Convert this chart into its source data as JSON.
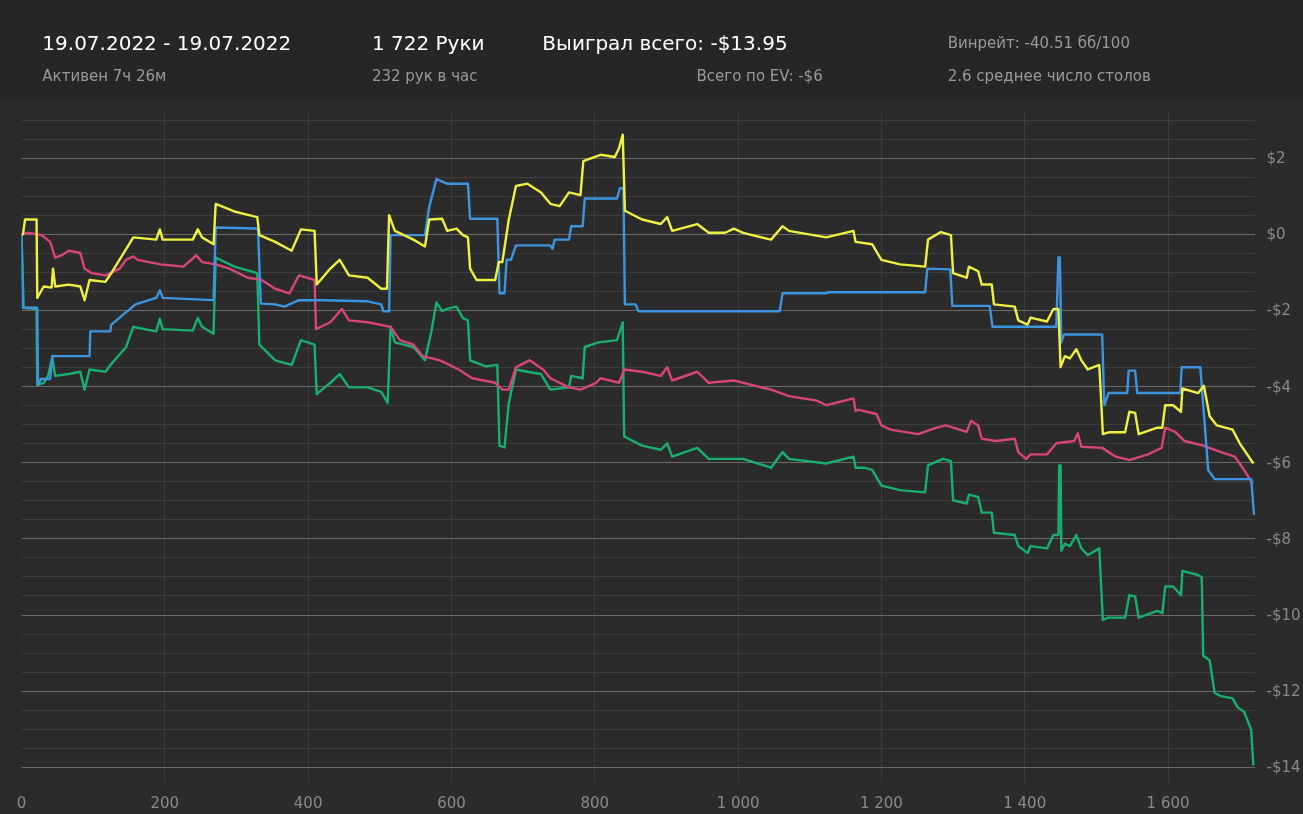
{
  "chart_data": {
    "type": "line",
    "annotations": [
      "19.07.2022 - 19.07.2022",
      "Активен 7ч 26м",
      "1 722 Руки",
      "232 рук в час",
      "Выиграл всего: -$13.95",
      "Всего по EV: -$6",
      "Винрейт: -40.51 бб/100",
      "2.6 среднее число столов"
    ],
    "xlim": [
      0,
      1722
    ],
    "ylim": [
      -14.4,
      3.2
    ],
    "xticks": [
      0,
      200,
      400,
      600,
      800,
      {
        "value": 1000,
        "label": "1 000"
      },
      {
        "value": 1200,
        "label": "1 200"
      },
      {
        "value": 1400,
        "label": "1 400"
      },
      {
        "value": 1600,
        "label": "1 600"
      }
    ],
    "yticks": [
      {
        "value": 2,
        "label": "$2"
      },
      {
        "value": 0,
        "label": "$0"
      },
      {
        "value": -2,
        "label": "-$2"
      },
      {
        "value": -4,
        "label": "-$4"
      },
      {
        "value": -6,
        "label": "-$6"
      },
      {
        "value": -8,
        "label": "-$8"
      },
      {
        "value": -10,
        "label": "-$10"
      },
      {
        "value": -12,
        "label": "-$12"
      },
      {
        "value": -14,
        "label": "-$14"
      }
    ],
    "grid": true,
    "marker": "none",
    "line_style": "solid",
    "series": [
      {
        "color": "#19b06f",
        "x": [
          0,
          3,
          21,
          22,
          31,
          37,
          43,
          47,
          66,
          82,
          88,
          95,
          117,
          127,
          146,
          156,
          188,
          193,
          197,
          239,
          246,
          252,
          268,
          271,
          297,
          329,
          332,
          354,
          377,
          390,
          409,
          412,
          431,
          444,
          457,
          483,
          502,
          511,
          515,
          521,
          547,
          563,
          572,
          579,
          587,
          594,
          607,
          616,
          623,
          626,
          648,
          664,
          667,
          674,
          680,
          690,
          706,
          725,
          738,
          764,
          767,
          783,
          786,
          805,
          831,
          839,
          841,
          866,
          892,
          901,
          908,
          943,
          959,
          994,
          1007,
          1046,
          1062,
          1071,
          1123,
          1161,
          1164,
          1176,
          1187,
          1200,
          1226,
          1261,
          1265,
          1286,
          1297,
          1300,
          1319,
          1322,
          1335,
          1340,
          1354,
          1357,
          1386,
          1391,
          1404,
          1408,
          1431,
          1440,
          1447,
          1448,
          1450,
          1451,
          1456,
          1463,
          1472,
          1479,
          1488,
          1504,
          1509,
          1517,
          1540,
          1546,
          1554,
          1559,
          1585,
          1592,
          1596,
          1607,
          1618,
          1620,
          1642,
          1647,
          1649,
          1658,
          1665,
          1674,
          1690,
          1697,
          1706,
          1716,
          1719
        ],
        "values": [
          0,
          -1.93,
          -1.96,
          -3.96,
          -3.9,
          -3.72,
          -3.25,
          -3.72,
          -3.67,
          -3.61,
          -4.08,
          -3.55,
          -3.61,
          -3.37,
          -2.96,
          -2.43,
          -2.55,
          -2.22,
          -2.49,
          -2.53,
          -2.2,
          -2.43,
          -2.61,
          -0.61,
          -0.85,
          -1.02,
          -2.9,
          -3.31,
          -3.43,
          -2.78,
          -2.9,
          -4.2,
          -3.9,
          -3.67,
          -4.02,
          -4.02,
          -4.14,
          -4.43,
          -2.43,
          -2.84,
          -2.96,
          -3.31,
          -2.55,
          -1.79,
          -2.02,
          -1.96,
          -1.9,
          -2.2,
          -2.26,
          -3.31,
          -3.47,
          -3.43,
          -5.55,
          -5.6,
          -4.43,
          -3.55,
          -3.61,
          -3.67,
          -4.08,
          -4.02,
          -3.72,
          -3.78,
          -2.96,
          -2.84,
          -2.78,
          -2.31,
          -5.31,
          -5.55,
          -5.66,
          -5.49,
          -5.84,
          -5.61,
          -5.9,
          -5.9,
          -5.9,
          -6.13,
          -5.72,
          -5.9,
          -6.02,
          -5.84,
          -6.13,
          -6.13,
          -6.19,
          -6.6,
          -6.72,
          -6.78,
          -6.07,
          -5.9,
          -5.96,
          -6.99,
          -7.07,
          -6.84,
          -6.9,
          -7.31,
          -7.31,
          -7.84,
          -7.9,
          -8.19,
          -8.37,
          -8.19,
          -8.25,
          -7.9,
          -7.9,
          -6.07,
          -6.07,
          -8.31,
          -8.13,
          -8.19,
          -7.9,
          -8.25,
          -8.43,
          -8.25,
          -10.13,
          -10.07,
          -10.07,
          -9.48,
          -9.51,
          -10.07,
          -9.89,
          -9.95,
          -9.25,
          -9.25,
          -9.48,
          -8.84,
          -8.95,
          -9.01,
          -11.07,
          -11.19,
          -12.05,
          -12.13,
          -12.19,
          -12.42,
          -12.54,
          -13.01,
          -13.95
        ]
      },
      {
        "color": "#d8457a",
        "x": [
          0,
          8,
          28,
          40,
          47,
          56,
          66,
          82,
          88,
          98,
          117,
          137,
          146,
          156,
          162,
          194,
          226,
          244,
          252,
          271,
          290,
          316,
          335,
          354,
          374,
          387,
          409,
          411,
          431,
          447,
          457,
          483,
          515,
          528,
          547,
          560,
          584,
          597,
          610,
          629,
          661,
          671,
          680,
          690,
          709,
          728,
          738,
          764,
          780,
          802,
          808,
          834,
          841,
          866,
          892,
          901,
          908,
          943,
          959,
          994,
          1020,
          1046,
          1071,
          1110,
          1123,
          1161,
          1164,
          1168,
          1193,
          1200,
          1213,
          1251,
          1277,
          1290,
          1319,
          1325,
          1335,
          1340,
          1360,
          1386,
          1391,
          1402,
          1408,
          1431,
          1444,
          1469,
          1474,
          1479,
          1508,
          1527,
          1546,
          1572,
          1591,
          1596,
          1610,
          1623,
          1649,
          1674,
          1693,
          1706,
          1718
        ],
        "values": [
          0,
          0.04,
          -0.02,
          -0.2,
          -0.61,
          -0.55,
          -0.43,
          -0.49,
          -0.9,
          -1.02,
          -1.08,
          -0.9,
          -0.67,
          -0.58,
          -0.67,
          -0.79,
          -0.85,
          -0.55,
          -0.73,
          -0.79,
          -0.9,
          -1.14,
          -1.2,
          -1.43,
          -1.55,
          -1.08,
          -1.2,
          -2.49,
          -2.31,
          -1.96,
          -2.26,
          -2.31,
          -2.43,
          -2.78,
          -2.9,
          -3.2,
          -3.31,
          -3.43,
          -3.55,
          -3.78,
          -3.9,
          -4.08,
          -4.08,
          -3.49,
          -3.31,
          -3.55,
          -3.78,
          -4.02,
          -4.08,
          -3.9,
          -3.78,
          -3.9,
          -3.55,
          -3.61,
          -3.72,
          -3.49,
          -3.84,
          -3.61,
          -3.9,
          -3.84,
          -3.96,
          -4.08,
          -4.25,
          -4.37,
          -4.49,
          -4.31,
          -4.64,
          -4.61,
          -4.72,
          -5.02,
          -5.13,
          -5.25,
          -5.08,
          -5.02,
          -5.19,
          -4.9,
          -5.02,
          -5.37,
          -5.43,
          -5.37,
          -5.72,
          -5.9,
          -5.78,
          -5.78,
          -5.49,
          -5.43,
          -5.23,
          -5.58,
          -5.61,
          -5.84,
          -5.93,
          -5.78,
          -5.61,
          -5.08,
          -5.19,
          -5.43,
          -5.55,
          -5.72,
          -5.84,
          -6.19,
          -6.55
        ]
      },
      {
        "color": "#3d95e0",
        "x": [
          0,
          2,
          22,
          23,
          27,
          40,
          43,
          95,
          96,
          124,
          125,
          159,
          188,
          193,
          197,
          268,
          271,
          330,
          334,
          354,
          367,
          387,
          419,
          483,
          502,
          505,
          513,
          515,
          563,
          569,
          579,
          594,
          623,
          626,
          664,
          667,
          674,
          677,
          683,
          690,
          738,
          741,
          744,
          764,
          767,
          783,
          786,
          831,
          835,
          840,
          842,
          857,
          861,
          1058,
          1062,
          1123,
          1126,
          1261,
          1264,
          1296,
          1299,
          1351,
          1355,
          1444,
          1447,
          1449,
          1451,
          1455,
          1508,
          1511,
          1517,
          1543,
          1545,
          1554,
          1557,
          1617,
          1619,
          1645,
          1656,
          1665,
          1716,
          1720
        ],
        "values": [
          0,
          -1.93,
          -1.93,
          -3.96,
          -3.8,
          -3.8,
          -3.2,
          -3.2,
          -2.55,
          -2.55,
          -2.38,
          -1.84,
          -1.67,
          -1.47,
          -1.67,
          -1.73,
          0.18,
          0.15,
          -1.82,
          -1.84,
          -1.9,
          -1.73,
          -1.73,
          -1.76,
          -1.84,
          -2.02,
          -2.02,
          -0.02,
          -0.02,
          0.72,
          1.45,
          1.33,
          1.33,
          0.41,
          0.41,
          -1.55,
          -1.55,
          -0.67,
          -0.67,
          -0.29,
          -0.29,
          -0.38,
          -0.14,
          -0.14,
          0.21,
          0.21,
          0.94,
          0.94,
          1.21,
          1.21,
          -1.84,
          -1.84,
          -2.02,
          -2.02,
          -1.55,
          -1.55,
          -1.52,
          -1.52,
          -0.9,
          -0.92,
          -1.88,
          -1.88,
          -2.43,
          -2.43,
          -0.61,
          -0.61,
          -2.84,
          -2.63,
          -2.63,
          -4.49,
          -4.17,
          -4.17,
          -3.58,
          -3.58,
          -4.17,
          -4.17,
          -3.49,
          -3.49,
          -6.19,
          -6.43,
          -6.43,
          -7.37
        ]
      },
      {
        "color": "#f0f040",
        "x": [
          0,
          2,
          5,
          21,
          22,
          31,
          42,
          44,
          47,
          66,
          82,
          88,
          95,
          117,
          127,
          156,
          188,
          193,
          197,
          239,
          246,
          252,
          268,
          271,
          297,
          329,
          332,
          354,
          377,
          390,
          409,
          412,
          431,
          444,
          457,
          483,
          502,
          510,
          513,
          521,
          547,
          563,
          569,
          587,
          594,
          607,
          616,
          623,
          626,
          635,
          661,
          666,
          671,
          680,
          690,
          706,
          725,
          738,
          751,
          764,
          780,
          784,
          808,
          828,
          834,
          839,
          842,
          866,
          892,
          901,
          908,
          943,
          959,
          982,
          994,
          1007,
          1046,
          1062,
          1071,
          1123,
          1161,
          1164,
          1187,
          1200,
          1226,
          1261,
          1265,
          1283,
          1297,
          1300,
          1319,
          1322,
          1335,
          1340,
          1354,
          1357,
          1386,
          1391,
          1404,
          1408,
          1431,
          1440,
          1447,
          1450,
          1456,
          1463,
          1472,
          1479,
          1488,
          1504,
          1509,
          1517,
          1540,
          1546,
          1554,
          1559,
          1585,
          1592,
          1596,
          1607,
          1618,
          1620,
          1642,
          1650,
          1658,
          1668,
          1690,
          1700,
          1719
        ],
        "values": [
          0,
          0,
          0.39,
          0.39,
          -1.67,
          -1.37,
          -1.4,
          -0.9,
          -1.37,
          -1.32,
          -1.37,
          -1.73,
          -1.2,
          -1.25,
          -0.97,
          -0.08,
          -0.14,
          0.13,
          -0.14,
          -0.14,
          0.13,
          -0.08,
          -0.26,
          0.8,
          0.6,
          0.45,
          -0.02,
          -0.2,
          -0.43,
          0.13,
          0.09,
          -1.32,
          -0.9,
          -0.67,
          -1.08,
          -1.14,
          -1.43,
          -1.43,
          0.5,
          0.09,
          -0.14,
          -0.32,
          0.39,
          0.41,
          0.09,
          0.15,
          -0.02,
          -0.08,
          -0.9,
          -1.2,
          -1.2,
          -0.73,
          -0.73,
          0.39,
          1.27,
          1.33,
          1.1,
          0.8,
          0.74,
          1.1,
          1.03,
          1.92,
          2.09,
          2.03,
          2.27,
          2.62,
          0.62,
          0.39,
          0.27,
          0.45,
          0.09,
          0.27,
          0.04,
          0.04,
          0.15,
          0.04,
          -0.14,
          0.21,
          0.09,
          -0.08,
          0.09,
          -0.2,
          -0.26,
          -0.67,
          -0.79,
          -0.85,
          -0.14,
          0.06,
          -0.02,
          -1.02,
          -1.14,
          -0.85,
          -0.97,
          -1.32,
          -1.32,
          -1.84,
          -1.9,
          -2.26,
          -2.37,
          -2.19,
          -2.29,
          -1.96,
          -1.96,
          -3.49,
          -3.2,
          -3.26,
          -3.02,
          -3.31,
          -3.55,
          -3.43,
          -5.25,
          -5.2,
          -5.2,
          -4.66,
          -4.69,
          -5.25,
          -5.08,
          -5.08,
          -4.49,
          -4.49,
          -4.66,
          -4.05,
          -4.17,
          -3.98,
          -4.78,
          -5.02,
          -5.13,
          -5.49,
          -6.02
        ]
      }
    ]
  }
}
